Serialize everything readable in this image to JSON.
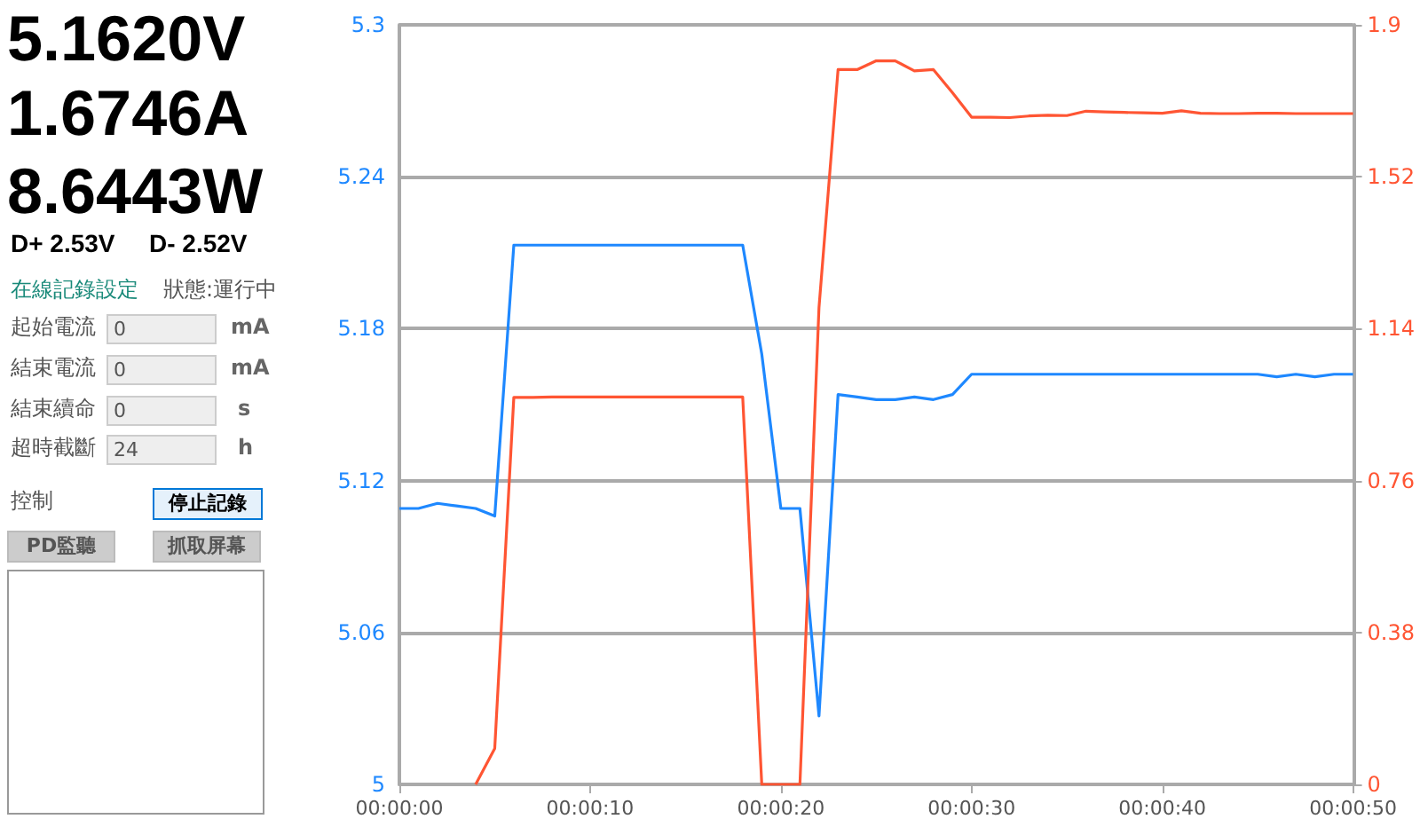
{
  "chart_data": {
    "type": "line",
    "annotations": [
      "5.1620V",
      "1.6746A",
      "8.6443W",
      "D+ 2.53V",
      "D- 2.52V",
      "在線記錄設定",
      "狀態:運行中",
      "起始電流",
      "0",
      "mA",
      "結束電流",
      "0",
      "mA",
      "結束續命",
      "0",
      "s",
      "超時截斷",
      "24",
      "h",
      "控制",
      "停止記錄",
      "PD監聽",
      "抓取屏幕"
    ],
    "x": [
      0,
      1,
      2,
      3,
      4,
      5,
      6,
      7,
      8,
      9,
      10,
      11,
      12,
      13,
      14,
      15,
      16,
      17,
      18,
      19,
      20,
      21,
      22,
      23,
      24,
      25,
      26,
      27,
      28,
      29,
      30,
      31,
      32,
      33,
      34,
      35,
      36,
      37,
      38,
      39,
      40,
      41,
      42,
      43,
      44,
      45,
      46,
      47,
      48,
      49,
      50
    ],
    "series": [
      {
        "color": "#1e88ff",
        "axis": "y",
        "values": [
          5.109,
          5.109,
          5.111,
          5.11,
          5.109,
          5.106,
          5.213,
          5.213,
          5.213,
          5.213,
          5.213,
          5.213,
          5.213,
          5.213,
          5.213,
          5.213,
          5.213,
          5.213,
          5.213,
          5.17,
          5.109,
          5.109,
          5.027,
          5.154,
          5.153,
          5.152,
          5.152,
          5.153,
          5.152,
          5.154,
          5.162,
          5.162,
          5.162,
          5.162,
          5.162,
          5.162,
          5.162,
          5.162,
          5.162,
          5.162,
          5.162,
          5.162,
          5.162,
          5.162,
          5.162,
          5.162,
          5.161,
          5.162,
          5.161,
          5.162,
          5.162
        ]
      },
      {
        "color": "#ff5533",
        "axis": "y2",
        "values": [
          null,
          null,
          null,
          null,
          0,
          0.09,
          0.968,
          0.968,
          0.969,
          0.969,
          0.969,
          0.969,
          0.969,
          0.969,
          0.969,
          0.969,
          0.969,
          0.969,
          0.969,
          0,
          0,
          0,
          1.193,
          1.788,
          1.788,
          1.81,
          1.81,
          1.785,
          1.788,
          1.73,
          1.669,
          1.669,
          1.668,
          1.672,
          1.674,
          1.673,
          1.684,
          1.682,
          1.681,
          1.68,
          1.679,
          1.685,
          1.679,
          1.678,
          1.678,
          1.679,
          1.679,
          1.678,
          1.678,
          1.678,
          1.678
        ]
      }
    ],
    "xlim": [
      0,
      50
    ],
    "xticks": [
      {
        "value": 0,
        "label": "00:00:00"
      },
      {
        "value": 10,
        "label": "00:00:10"
      },
      {
        "value": 20,
        "label": "00:00:20"
      },
      {
        "value": 30,
        "label": "00:00:30"
      },
      {
        "value": 40,
        "label": "00:00:40"
      },
      {
        "value": 50,
        "label": "00:00:50"
      }
    ],
    "ylim": [
      5,
      5.3
    ],
    "yticks": [
      5,
      5.06,
      5.12,
      5.18,
      5.24,
      5.3
    ],
    "y2lim": [
      0,
      1.9
    ],
    "y2ticks": [
      0,
      0.38,
      0.76,
      1.14,
      1.52,
      1.9
    ],
    "grid": "y",
    "marker": "none",
    "line_style": "solid"
  }
}
